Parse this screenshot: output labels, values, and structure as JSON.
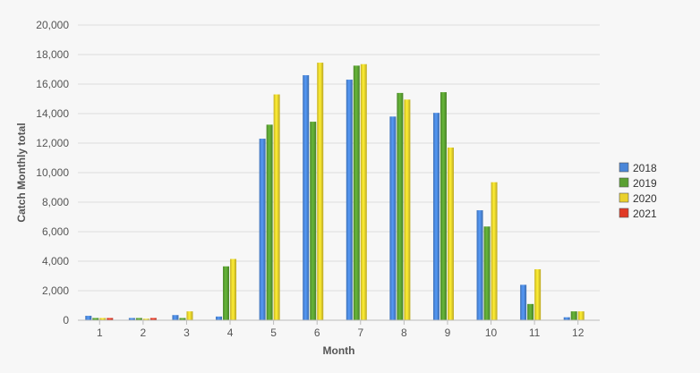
{
  "chart_data": {
    "type": "bar",
    "xlabel": "Month",
    "ylabel": "Catch Monthly total",
    "ylim": [
      0,
      20000
    ],
    "yticks": [
      0,
      2000,
      4000,
      6000,
      8000,
      10000,
      12000,
      14000,
      16000,
      18000,
      20000
    ],
    "categories": [
      "1",
      "2",
      "3",
      "4",
      "5",
      "6",
      "7",
      "8",
      "9",
      "10",
      "11",
      "12"
    ],
    "grid": true,
    "legend_position": "right",
    "series": [
      {
        "name": "2018",
        "color": "#4a86d8",
        "values": [
          300,
          150,
          350,
          250,
          12300,
          16600,
          16300,
          13800,
          14050,
          7450,
          2400,
          200
        ]
      },
      {
        "name": "2019",
        "color": "#5aa032",
        "values": [
          150,
          150,
          150,
          3650,
          13250,
          13450,
          17250,
          15400,
          15450,
          6350,
          1100,
          600
        ]
      },
      {
        "name": "2020",
        "color": "#ead12c",
        "values": [
          150,
          100,
          600,
          4150,
          15300,
          17450,
          17350,
          14950,
          11700,
          9350,
          3450,
          600
        ]
      },
      {
        "name": "2021",
        "color": "#e03a26",
        "values": [
          150,
          150,
          null,
          null,
          null,
          null,
          null,
          null,
          null,
          null,
          null,
          null
        ]
      }
    ]
  }
}
